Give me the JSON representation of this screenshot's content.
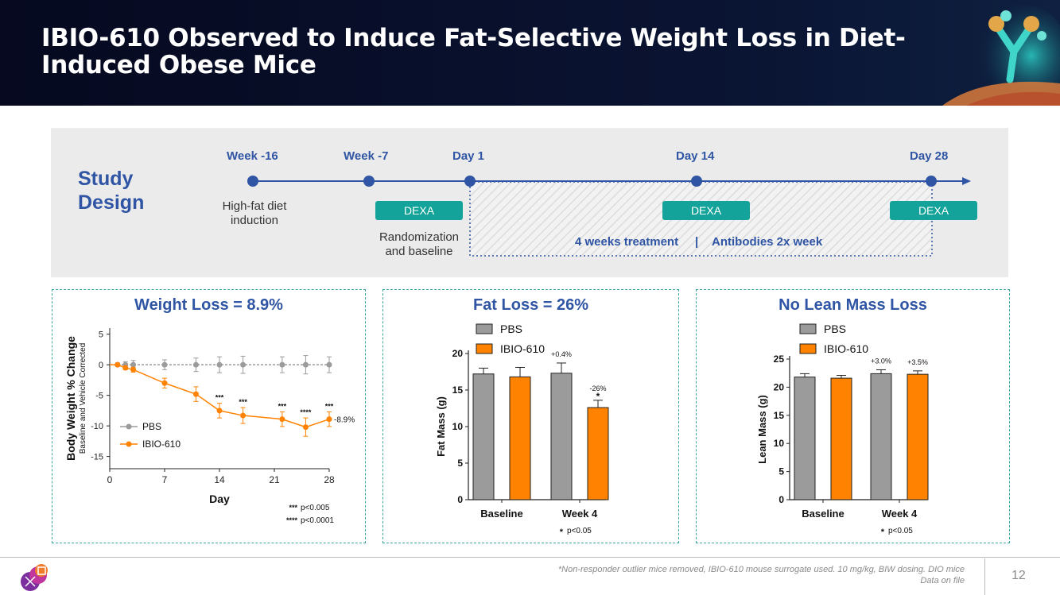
{
  "header": {
    "title": "IBIO-610 Observed to Induce Fat-Selective Weight Loss in Diet-Induced Obese Mice"
  },
  "study_design": {
    "title_line1": "Study",
    "title_line2": "Design",
    "timepoints": [
      "Week -16",
      "Week -7",
      "Day 1",
      "Day 14",
      "Day 28"
    ],
    "high_fat_line1": "High-fat diet",
    "high_fat_line2": "induction",
    "randomization_line1": "Randomization",
    "randomization_line2": "and baseline",
    "dexa_label": "DEXA",
    "treatment": "4 weeks treatment",
    "separator": "|",
    "antibodies": "Antibodies 2x week"
  },
  "colors": {
    "pbs": "#9b9b9b",
    "ibio": "#ff8200",
    "accent": "#2f55a4",
    "teal": "#14a39a"
  },
  "chart_data": [
    {
      "type": "line",
      "title": "Weight Loss = 8.9%",
      "xlabel": "Day",
      "ylabel": "Body Weight % Change",
      "ylabel_sub": "Baseline and Vehicle Corrected",
      "xlim": [
        0,
        28
      ],
      "ylim": [
        -17,
        6
      ],
      "xticks": [
        "0",
        "7",
        "14",
        "21",
        "28"
      ],
      "yticks": [
        "5",
        "0",
        "-5",
        "-10",
        "-15"
      ],
      "series": [
        {
          "name": "PBS",
          "x": [
            1,
            2,
            3,
            7,
            11,
            14,
            17,
            22,
            25,
            28
          ],
          "values": [
            0,
            0,
            0,
            0,
            0,
            0,
            0,
            0,
            0,
            0
          ],
          "errors": [
            0.3,
            0.5,
            0.7,
            0.8,
            1.1,
            1.3,
            1.4,
            1.3,
            1.5,
            1.3
          ]
        },
        {
          "name": "IBIO-610",
          "x": [
            1,
            2,
            3,
            7,
            11,
            14,
            17,
            22,
            25,
            28
          ],
          "values": [
            0,
            -0.5,
            -0.8,
            -3,
            -4.8,
            -7.5,
            -8.3,
            -8.9,
            -10.2,
            -8.9
          ],
          "errors": [
            0.2,
            0.3,
            0.4,
            0.8,
            1.2,
            1.2,
            1.3,
            1.2,
            1.5,
            1.2
          ]
        }
      ],
      "significance": [
        {
          "x": 14,
          "label": "***"
        },
        {
          "x": 17,
          "label": "***"
        },
        {
          "x": 22,
          "label": "***"
        },
        {
          "x": 25,
          "label": "****"
        },
        {
          "x": 28,
          "label": "***"
        }
      ],
      "end_label": "-8.9%",
      "pvalues": [
        {
          "mark": "***",
          "text": "p<0.005"
        },
        {
          "mark": "****",
          "text": "p<0.0001"
        }
      ]
    },
    {
      "type": "bar",
      "title": "Fat Loss = 26%",
      "categories": [
        "Baseline",
        "Week 4"
      ],
      "ylabel": "Fat Mass (g)",
      "ylim": [
        0,
        20
      ],
      "yticks": [
        "0",
        "5",
        "10",
        "15",
        "20"
      ],
      "series": [
        {
          "name": "PBS",
          "values": [
            17.2,
            17.3
          ],
          "errors": [
            0.8,
            1.4
          ]
        },
        {
          "name": "IBIO-610",
          "values": [
            16.8,
            12.6
          ],
          "errors": [
            1.3,
            1.0
          ]
        }
      ],
      "bar_annotations": [
        "+0.4%",
        "-26%"
      ],
      "star": "*",
      "pvalue_mark": "*",
      "pvalue": "p<0.05"
    },
    {
      "type": "bar",
      "title": "No Lean Mass Loss",
      "categories": [
        "Baseline",
        "Week 4"
      ],
      "ylabel": "Lean Mass (g)",
      "ylim": [
        0,
        25
      ],
      "yticks": [
        "0",
        "5",
        "10",
        "15",
        "20",
        "25"
      ],
      "series": [
        {
          "name": "PBS",
          "values": [
            21.8,
            22.4
          ],
          "errors": [
            0.6,
            0.7
          ]
        },
        {
          "name": "IBIO-610",
          "values": [
            21.6,
            22.3
          ],
          "errors": [
            0.5,
            0.6
          ]
        }
      ],
      "bar_annotations": [
        "+3.0%",
        "+3.5%"
      ],
      "pvalue_mark": "*",
      "pvalue": "p<0.05"
    }
  ],
  "footer": {
    "note_line1": "*Non-responder outlier mice removed, IBIO-610 mouse surrogate used. 10 mg/kg, BIW dosing. DIO mice",
    "note_line2": "Data on file",
    "page_number": "12"
  }
}
